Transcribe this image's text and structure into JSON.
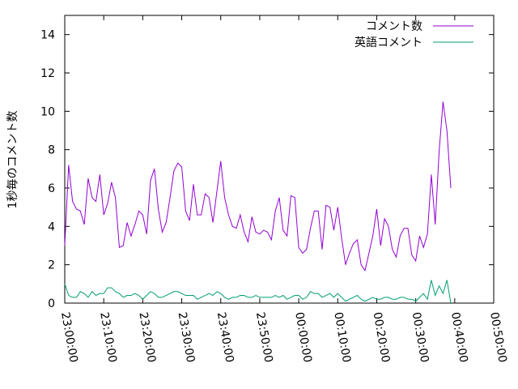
{
  "chart_data": {
    "type": "line",
    "y_label": "1秒毎のコメント数",
    "x": [
      0,
      1,
      2,
      3,
      4,
      5,
      6,
      7,
      8,
      9,
      10,
      11,
      12,
      13,
      14,
      15,
      16,
      17,
      18,
      19,
      20,
      21,
      22,
      23,
      24,
      25,
      26,
      27,
      28,
      29,
      30,
      31,
      32,
      33,
      34,
      35,
      36,
      37,
      38,
      39,
      40,
      41,
      42,
      43,
      44,
      45,
      46,
      47,
      48,
      49,
      50,
      51,
      52,
      53,
      54,
      55,
      56,
      57,
      58,
      59,
      60,
      61,
      62,
      63,
      64,
      65,
      66,
      67,
      68,
      69,
      70,
      71,
      72,
      73,
      74,
      75,
      76,
      77,
      78,
      79,
      80,
      81,
      82,
      83,
      84,
      85,
      86,
      87,
      88,
      89,
      90,
      91,
      92,
      93,
      94,
      95,
      96,
      97,
      98,
      99
    ],
    "series": [
      {
        "name": "コメント数",
        "color": "#9400d3",
        "values": [
          3.0,
          7.2,
          5.3,
          4.9,
          4.8,
          4.1,
          6.5,
          5.5,
          5.3,
          6.7,
          4.6,
          5.2,
          6.3,
          5.5,
          2.9,
          3.0,
          4.2,
          3.5,
          4.1,
          4.8,
          4.6,
          3.6,
          6.4,
          7.0,
          4.9,
          3.7,
          4.2,
          5.5,
          6.9,
          7.3,
          7.1,
          4.8,
          4.3,
          6.2,
          4.6,
          4.6,
          5.7,
          5.5,
          4.2,
          5.8,
          7.4,
          5.5,
          4.6,
          4.0,
          3.9,
          4.6,
          3.7,
          3.2,
          4.5,
          3.7,
          3.6,
          3.8,
          3.7,
          3.3,
          4.8,
          5.5,
          3.8,
          3.5,
          5.6,
          5.5,
          2.9,
          2.6,
          2.8,
          3.9,
          4.8,
          4.8,
          2.8,
          5.1,
          5.0,
          3.8,
          5.0,
          3.4,
          2.0,
          2.6,
          3.1,
          3.3,
          2.0,
          1.7,
          2.6,
          3.5,
          4.9,
          3.0,
          4.4,
          4.0,
          2.8,
          2.4,
          3.5,
          3.9,
          3.9,
          2.5,
          2.2,
          3.5,
          2.9,
          3.6,
          6.7,
          4.1,
          7.9,
          10.5,
          9.0,
          6.0
        ]
      },
      {
        "name": "英語コメント",
        "color": "#009e73",
        "values": [
          1.0,
          0.4,
          0.3,
          0.3,
          0.6,
          0.5,
          0.3,
          0.6,
          0.4,
          0.5,
          0.5,
          0.8,
          0.8,
          0.6,
          0.5,
          0.3,
          0.4,
          0.4,
          0.5,
          0.4,
          0.2,
          0.4,
          0.6,
          0.5,
          0.3,
          0.3,
          0.4,
          0.5,
          0.6,
          0.6,
          0.5,
          0.4,
          0.4,
          0.4,
          0.2,
          0.3,
          0.4,
          0.5,
          0.4,
          0.6,
          0.5,
          0.3,
          0.2,
          0.3,
          0.3,
          0.4,
          0.4,
          0.3,
          0.3,
          0.4,
          0.3,
          0.3,
          0.3,
          0.3,
          0.4,
          0.3,
          0.4,
          0.2,
          0.3,
          0.4,
          0.4,
          0.2,
          0.3,
          0.6,
          0.5,
          0.5,
          0.3,
          0.4,
          0.5,
          0.3,
          0.5,
          0.3,
          0.1,
          0.2,
          0.3,
          0.4,
          0.2,
          0.1,
          0.2,
          0.3,
          0.2,
          0.2,
          0.3,
          0.3,
          0.2,
          0.2,
          0.3,
          0.3,
          0.2,
          0.2,
          0.1,
          0.3,
          0.5,
          0.2,
          1.2,
          0.4,
          0.9,
          0.5,
          1.2,
          0.0
        ]
      }
    ],
    "xlim": [
      0,
      110
    ],
    "xticks": [
      {
        "value": 0,
        "label": "23:00:00"
      },
      {
        "value": 10,
        "label": "23:10:00"
      },
      {
        "value": 20,
        "label": "23:20:00"
      },
      {
        "value": 30,
        "label": "23:30:00"
      },
      {
        "value": 40,
        "label": "23:40:00"
      },
      {
        "value": 50,
        "label": "23:50:00"
      },
      {
        "value": 60,
        "label": "00:00:00"
      },
      {
        "value": 70,
        "label": "00:10:00"
      },
      {
        "value": 80,
        "label": "00:20:00"
      },
      {
        "value": 90,
        "label": "00:30:00"
      },
      {
        "value": 100,
        "label": "00:40:00"
      },
      {
        "value": 110,
        "label": "00:50:00"
      }
    ],
    "ylim": [
      0,
      15
    ],
    "yticks": [
      0,
      2,
      4,
      6,
      8,
      10,
      12,
      14
    ],
    "legend": "top-right"
  }
}
